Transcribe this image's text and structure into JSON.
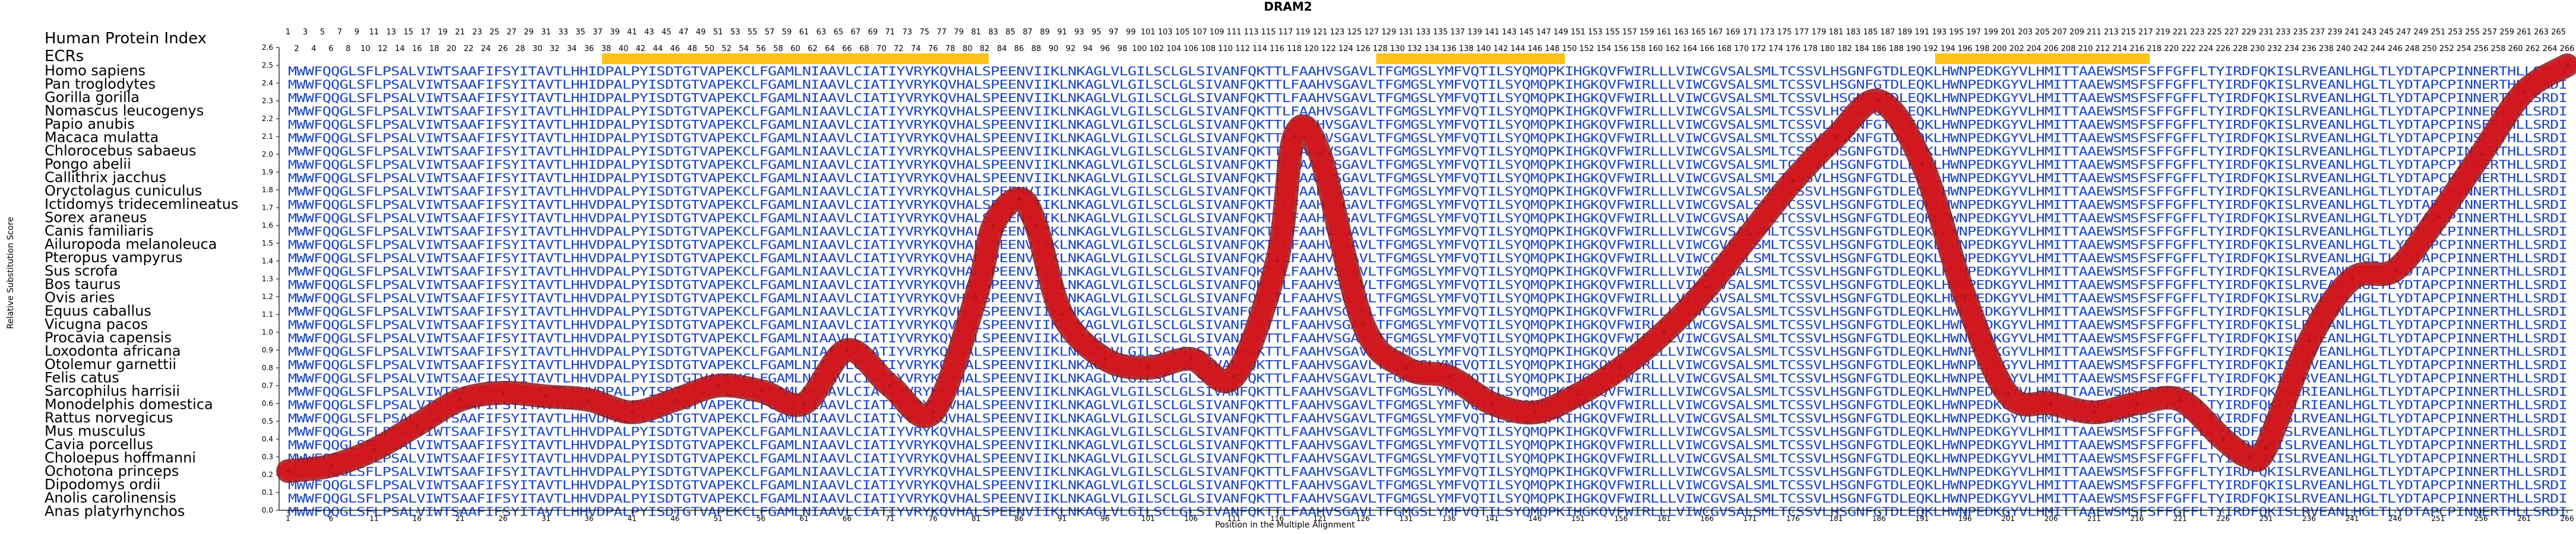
{
  "chart_data": {
    "type": "line",
    "title": "DRAM2",
    "xlabel": "Position in the Multiple Alignment",
    "ylabel": "Relative Substitution Score",
    "xlim": [
      1,
      266
    ],
    "ylim": [
      0.0,
      2.6
    ],
    "yticks": [
      0.0,
      0.1,
      0.2,
      0.3,
      0.4,
      0.5,
      0.6,
      0.7,
      0.8,
      0.9,
      1.0,
      1.1,
      1.2,
      1.3,
      1.4,
      1.5,
      1.6,
      1.7,
      1.8,
      1.9,
      2.0,
      2.1,
      2.2,
      2.3,
      2.4,
      2.5,
      2.6
    ],
    "xticks": [
      1,
      6,
      11,
      16,
      21,
      26,
      31,
      36,
      41,
      46,
      51,
      56,
      61,
      66,
      71,
      76,
      81,
      86,
      91,
      96,
      101,
      106,
      111,
      116,
      121,
      126,
      131,
      136,
      141,
      146,
      151,
      156,
      161,
      166,
      171,
      176,
      181,
      186,
      191,
      196,
      201,
      206,
      211,
      216,
      221,
      226,
      231,
      236,
      241,
      246,
      251,
      256,
      261,
      266
    ],
    "grid": false,
    "header_row_label": "Human Protein Index",
    "ecr_label": "ECRs",
    "index_top": [
      "1",
      "3",
      "5",
      "7",
      "9",
      "11",
      "13",
      "15",
      "17",
      "19",
      "21",
      "23",
      "25",
      "27",
      "29",
      "31",
      "33",
      "35",
      "37",
      "39",
      "41",
      "43",
      "45",
      "47",
      "49",
      "51",
      "53",
      "55",
      "57",
      "59",
      "61",
      "63",
      "65",
      "67",
      "69",
      "71",
      "73",
      "75",
      "77",
      "79",
      "81",
      "83",
      "85",
      "87",
      "89",
      "91",
      "93",
      "95",
      "97",
      "99",
      "101",
      "103",
      "105",
      "107",
      "109",
      "111",
      "113",
      "115",
      "117",
      "119",
      "121",
      "123",
      "125",
      "127",
      "129",
      "131",
      "133",
      "135",
      "137",
      "139",
      "141",
      "143",
      "145",
      "147",
      "149",
      "151",
      "153",
      "155",
      "157",
      "159",
      "161",
      "163",
      "165",
      "167",
      "169",
      "171",
      "173",
      "175",
      "177",
      "179",
      "181",
      "183",
      "185",
      "187",
      "189",
      "191",
      "193",
      "195",
      "197",
      "199",
      "201",
      "203",
      "205",
      "207",
      "209",
      "211",
      "213",
      "215",
      "217",
      "219",
      "221",
      "223",
      "225",
      "227",
      "229",
      "231",
      "233",
      "235",
      "237",
      "239",
      "241",
      "243",
      "245",
      "247",
      "249",
      "251",
      "253",
      "255",
      "257",
      "259",
      "261",
      "263",
      "265"
    ],
    "index_bottom": [
      "2",
      "4",
      "6",
      "8",
      "10",
      "12",
      "14",
      "16",
      "18",
      "20",
      "22",
      "24",
      "26",
      "28",
      "30",
      "32",
      "34",
      "36",
      "38",
      "40",
      "42",
      "44",
      "46",
      "48",
      "50",
      "52",
      "54",
      "56",
      "58",
      "60",
      "62",
      "64",
      "66",
      "68",
      "70",
      "72",
      "74",
      "76",
      "78",
      "80",
      "82",
      "84",
      "86",
      "88",
      "90",
      "92",
      "94",
      "96",
      "98",
      "100",
      "102",
      "104",
      "106",
      "108",
      "110",
      "112",
      "114",
      "116",
      "118",
      "120",
      "122",
      "124",
      "126",
      "128",
      "130",
      "132",
      "134",
      "136",
      "138",
      "140",
      "142",
      "144",
      "146",
      "148",
      "150",
      "152",
      "154",
      "156",
      "158",
      "160",
      "162",
      "164",
      "166",
      "168",
      "170",
      "172",
      "174",
      "176",
      "178",
      "180",
      "182",
      "184",
      "186",
      "188",
      "190",
      "192",
      "194",
      "196",
      "198",
      "200",
      "202",
      "204",
      "206",
      "208",
      "210",
      "212",
      "214",
      "216",
      "218",
      "220",
      "222",
      "224",
      "226",
      "228",
      "230",
      "232",
      "234",
      "236",
      "238",
      "240",
      "242",
      "244",
      "246",
      "248",
      "250",
      "252",
      "254",
      "256",
      "258",
      "260",
      "262",
      "264",
      "266"
    ],
    "ecr_ranges": [
      [
        38,
        82
      ],
      [
        128,
        149
      ],
      [
        193,
        217
      ]
    ],
    "colors": {
      "line": "#d9141b",
      "line_dark": "#9b1418",
      "aa_conserved": "#1a44c8",
      "aa_variable": "#4d7fa0",
      "ecr": "#ffc21a",
      "text": "#000000"
    },
    "species": [
      "Homo sapiens",
      "Pan troglodytes",
      "Gorilla gorilla",
      "Nomascus leucogenys",
      "Papio anubis",
      "Macaca mulatta",
      "Chlorocebus sabaeus",
      "Pongo abelii",
      "Callithrix jacchus",
      "Oryctolagus cuniculus",
      "Ictidomys tridecemlineatus",
      "Sorex araneus",
      "Canis familiaris",
      "Ailuropoda melanoleuca",
      "Pteropus vampyrus",
      "Sus scrofa",
      "Bos taurus",
      "Ovis aries",
      "Equus caballus",
      "Vicugna pacos",
      "Procavia capensis",
      "Loxodonta africana",
      "Otolemur garnettii",
      "Felis catus",
      "Sarcophilus harrisii",
      "Monodelphis domestica",
      "Rattus norvegicus",
      "Mus musculus",
      "Cavia porcellus",
      "Choloepus hoffmanni",
      "Ochotona princeps",
      "Dipodomys ordii",
      "Anolis carolinensis",
      "Anas platyrhynchos"
    ],
    "sequences": [
      "MWWFQQGLSFLPSALVIWTSAAFIFSYITAVTLHHIDPALPYISDTGTVAPEKCLFGAMLNIAAVLCIATIYVRYKQVHALSPEENVIIKLNKAGLVLGILSCLGLSIVANFQKTTLFAAHVSGAVLTFGMGSLYMFVQTILSYQMQPKIHGKQVFWIRLLLVIWCGVSALSMLTCSSVLHSGNFGTDLEQKLHWNPEDKGYVLHMITTAAEWSMSFSFFGFFLTYIRDFQKISLRVEANLHGLTLYDTAPCPINNERTHLLSRDI",
      "MWWFQQGLSFLPSALVIWTSAAFIFSYITAVTLHHIDPALPYISDTGTVAPEKCLFGAMLNIAAVLCIATIYVRYKQVHALSPEENVIIKLNKAGLVLGILSCLGLSIVANFQKTTLFAAHVSGAVLTFGMGSLYMFVQTILSYQMQPKIHGKQVFWIRLLLVIWCGVSALSMLTCSSVLHSGNFGTDLEQKLHWNPEDKGYVLHMITTAAEWSMSFSFFGFFLTYIRDFQKISLRVEANLHGLTLYDTAPCPINNERTHLLSRDI",
      "MWWFQQGLSFLPSALVIWTSAAFIFSYITAVTLHHIDPALPYISDTGTVAPEKCLFGAMLNIAAVLCIATIYVRYKQVHALSPEENVIIKLNKAGLVLGILSCLGLSIVANFQKTTLFAAHVSGAVLTFGMGSLYMFVQTILSYQMQPKIHGKQVFWIRLLLVIWCGVSALSMLTCSSVLHSGNFGTDLEQKLHWNPEDKGYVLHMITTAAEWSMSFSFFGFFLTYIRDFQKISLRVEANLHGLTLYDTAPCPINNERTHLLSRDI",
      "MWWFQQGLSFLPSALVIWTSAAFIFSYITAVTLHHIDPALPYISDTGTVAPEKCLFGAMLNIAAVLCIATIYVRYKQVHALSPEENVIIKLNKAGLVLGILSCLGLSIVANFQKTTLFAAHVSGAVLTFGMGSLYMFVQTILSYQMQPKIHGKQVFWIRLLLVIWCGVSALSMLTCSSVLHSGNFGTDLEQKLHWNPEDKGYVLHMITTAAEWSMSFSFFGFFLTYIRDFQKISLRVEANLHGLTLYDTAPCPINNERTHLLSRDI",
      "MWWFQQGLSFLPSALVIWTSAAFIFSYITAVTLHHIDPALPYISDTGTVAPEKCLFGAMLNIAAVLCIATIYVRYKQVHALSPEENVIIKLNKAGLVLGILSCLGLSIVANFQKTTLFAAHVSGAVLTFGMGSLYMFVQTILSYQMQPKIHGKQVFWIRLLLVIWCGVSALSMLTCSSVLHSGNFGTDLEQKLHWNPEDKGYVLHMITTAAEWSMSFSFFGFFLTYIRDFQKISLRVEANLHGLTLYDTAPCPINSERTHLLSRDI",
      "MWWFQQGLSFLPSALVIWTSAAFIFSYITAVTLHHIDPALPYISDTGTVAPEKCLFGAMLNIAAVLCIATIYVRYKQVHALSPEENVIIKLNKAGLVLGILSCLGLSIVANFQKTTLFAAHVSGAVLTFGMGSLYMFVQTILSYQMQPKIHGKQVFWIRLLLVIWCGVSALSMLTCSSVLHSGNFGTDLEQKLHWNPEDKGYVLHMITTAAEWSMSFSFFGFFLTYIRDFQKISLRVEANLHGLTLYDTAPCPINSERTHLLSRDI",
      "MWWFQQGLSFLPSALVIWTSAAFIFSYITAVTLHHIDPALPYISDTGTVAPEKCLFGAMLNIAAVLCIATIYVRYKQVHALSPEENVIIKLNKAGLVLGILSCLGLSIVANFQKTTLFAAHVSGAVLTFGMGSLYMFVQTILSYQMQPKIHGKQVFWIRLLLVIWCGVSALSMLTCSSVLHSGNFGTDLEQKLHWNPEDKGYVLHMITTAAEWSMSFSFFGFFLTYIRDFQKISLRVEANLHGLTLYDTAPCPINSERTHLLSRDI",
      "MWWFQQGLSFLPSALVIWTSAAFIFSYITAVTLHHIDPALPYISDTGTVAPEKCLFGAMLNIAAVLCIATIYVRYKQVHALSPEENVIIKLNKAGLVLGILSCLGLSIVANFQKTTLFAAHVSGAVLTFGMGSLYMFVQTILSYQMQPKIHGKQVFWIRLLLVIWCGVSALSMLTCSSVLHSGNFGTDLEQKLHWNPEDKGYVLHMITTAAEWSMSFSFFGFFLTYIRDFQKISLRVEANLHGLTLYDTAPCPINNERTHLLSRDI",
      "MWWFQQGLSFLPSALVIWTSAAFIFSYITAVTLHHIDPALPYISDTGTVAPEKCLFGAMLNIAAVLCIATIYVRYKQVHALSPEENVIIKLNKAGLVLGILSCLGLSIVANFQKTTLFAAHVSGAVLTFGMGSLYMFVQTILSYQMQPKIHGKQVFWIRLLLVIWCGVSALSMLTCSSVLHSGNFGTDLEQKLHWNPEDKGYVLHMITTAAEWSMSFSFFGFFLTYIRDFQKISLRVEANLHGLTLYDTAPCPINNERTHLLSRDI",
      "MWWFQQGLSFLPSALVIWTSAAFIFSYITAVTLHHVDPALPYISDTGTVAPEKCLFGAMLNIAAVLCIATIYVRYKQVHALSPEENVIIKLNKAGLVLGILSCLGLSIVANFQKTTLFAAHVSGAVLTFGMGSLYMFVQTILSYQMQPKIHGKQVFWIRLLLVIWCGVSALSMLTCSSVLHSGNFGTDLEQKLHWNPEDKGYVLHMITTAAEWSMSFSFFGFFLTYIRDFQKISLRVEANLHGLTLYDTAPCPINNERTHLLSRDI",
      "MWWFQQGLSFLPSALVIWTSAAFIFSYITAVTLHHVDPALPYISDTGTVAPEKCLFGAMLNIAAVLCIATIYVRYKQVHALSPEENVIIKLNKAGLVLGILSCLGLSIVANFQKTTLFAAHVSGAVLTFGMGSLYMFVQTILSYQMQPKIHGKQVFWIRLLLVIWCGVSALSMLTCSSVLHSGNFGTDLEQKLHWNPEDKGYVLHMITTAAEWSMSFSFFGFFLTYIRDFQKISLRVEANLHGLTLYDTAPCPINNERTHLLSRDI",
      "MWWFQQGLSFLPSALVIWTSAAFIFSYITAVTLHHVDPALPYISDTGTVAPEKCLFGAMLNIAAVLCIATIYVRYKQVHALSPEENVIIKLNKAGLVLGILSCLGLSIVANFQKTTLFAAHVSGAVLTFGMGSLYMFVQTILSYQMQPKIHGKQVFWIRLLLVIWCGVSALSMLTCSSVLHSGNFGTDLEQKLHWNPEDKGYVLHMITTAAEWSMSFSFFGFFLTYIRDFQKISLRVEANLHGLTLYDTAPCPINNERTHLLSRDI",
      "MWWFQQGLSFLPSALVIWTSAAFIFSYITAVTLHHVDPALPYISDTGTVAPEKCLFGAMLNIAAVLCIATIYVRYKQVHALSPEENVIIKLNKAGLVLGILSCLGLSIVANFQKTTLFAAHVSGAVLTFGMGSLYMFVQTILSYQMQPKIHGKQVFWIRLLLVIWCGVSALSMLTCSSVLHSGNFGTDLEQKLHWNPEDKGYVLHMITTAAEWSMSFSFFGFFLTYIRDFQKISLRVEANLHGLTLYDTAPCPINNERTHLLSRDI",
      "MWWFQQGLSFLPSALVIWTSAAFIFSYITAVTLHHVDPALPYISDTGTVAPEKCLFGAMLNIAAVLCIATIYVRYKQVHALSPEENVIIKLNKAGLVLGILSCLGLSIVANFQKTTLFAAHVSGAVLTFGMGSLYMFVQTILSYQMQPKIHGKQVFWIRLLLVIWCGVSALSMLTCSSVLHSGNFGTDLEQKLHWNPEDKGYVLHMITTAAEWSMSFSFFGFFLTYIRDFQKISLRVEANLHGLTLYDTAPCPINNERTHLLSRDI",
      "MWWFQQGLSFLPSALVIWTSAAFIFSYITAVTLHHVDPALPYISDTGTVAPEKCLFGAMLNIAAVLCIATIYVRYKQVHALSPEENVIIKLNKAGLVLGILSCLGLSIVANFQKTTLFAAHVSGAVLTFGMGSLYMFVQTILSYQMQPKIHGKQVFWIRLLLVIWCGVSALSMLTCSSVLHSGNFGTDLEQKLHWNPEDKGYVLHMITTAAEWSMSFSFFGFFLTYIRDFQKISLRVEANLHGLTLYDTAPCPINNERTHLLSRDI",
      "MWWFQQGLSFLPSALVIWTSAAFIFSYITAVTLHHVDPALPYISDTGTVAPEKCLFGAMLNIAAVLCIATIYVRYKQVHALSPEENVIIKLNKAGLVLGILSCLGLSIVANFQKTTLFAAHVSGAVLTFGMGSLYMFVQTILSYQMQPKIHGKQVFWIRLLLVIWCGVSALSMLTCSSVLHSGNFGTDLEQKLHWNPEDKGYVLHMITTAAEWSMSFSFFGFFLTYIRDFQKISLRVEANLHGLTLYDTAPCPINNERTHLLSRDI",
      "MWWFQQGLSFLPSALVIWTSAAFIFSYITAVTLHHVDPALPYISDTGTVAPEKCLFGAMLNIAAVLCIATIYVRYKQVHALSPEENVIIKLNKAGLVLGILSCLGLSIVANFQKTTLFAAHVSGAVLTFGMGSLYMFVQTILSYQMQPKIHGKQVFWIRLLLVIWCGVSALSMLTCSSVLHSGNFGTDLEQKLHWNPEDKGYVLHMITTAAEWSMSFSFFGFFLTYIRDFQKISLRVEANLHGLTLYDTAPCPINNERTHLLSRDI",
      "MWWFQQGLSFLPSALVIWTSAAFIFSYITAVTLHHVDPALPYISDTGTVAPEKCLFGAMLNIAAVLCIATIYVRYKQVHALSPEENVIIKLNKAGLVLGILSCLGLSIVANFQKTTLFAAHVSGAVLTFGMGSLYMFVQTILSYQMQPKIHGKQVFWIRLLLVIWCGVSALSMLTCSSVLHSGNFGTDLEQKLHWNPEDKGYVLHMITTAAEWSMSFSFFGFFLTYIRDFQKISLRVEANLHGLTLYDTAPCPINNERTHLLSRDI",
      "MWWFQQGLSFLPSALVIWTSAAFIFSYITAVTLHHVDPALPYISDTGTVAPEKCLFGAMLNIAAVLCIATIYVRYKQVHALSPEENVIIKLNKAGLVLGILSCLGLSIVANFQKTTLFAAHVSGAVLTFGMGSLYMFVQTILSYQMQPKIHGKQVFWIRLLLVIWCGVSALSMLTCSSVLHSGNFGTDLEQKLHWNPEDKGYVLHMITTAAEWSMSFSFFGFFLTYIRDFQKISLRVEANLHGLTLYDTAPCPINNERTHLLSRDI",
      "MWWFQQGLSFLPSALVIWTSAAFIFSYITAVTLHHVDPALPYISDTGTVAPEKCLFGAMLNIAAVLCIATIYVRYKQVHALSPEENVIIKLNKAGLVLGILSCLGLSIVANFQKTTLFAAHVSGAVLTFGMGSLYMFVQTILSYQMQPKIHGKQVFWIRLLLVIWCGVSALSMLTCSSVLHSGNFGTDLEQKLHWNPEDKGYVLHMITTAAEWSMSFSFFGFFLTYIRDFQKISLRVEANLHGLTLYDTAPCPINNERTHLLSRDI",
      "MWWFQQGLSFLPSALVIWTSAAFIFSYITAVTLHHVDPALPYISDTGTVAPEKCLFGAMLNIAAVLCIATIYVRYKQVHALSPEENVIIKLNKAGLVLGILSCLGLSIVANFQKTTLFAAHVSGAVLTFGMGSLYMFVQTILSYQMQPKIHGKQVFWIRLLLVIWCGVSALSMLTCSSVLHSGNFGTDLEQKLHWNPEDKGYVLHMITTAAEWSMSFSFFGFFLTYIRDFQKISLRVEANLHGLTLYDTAPCPINNERTHLLSRDI",
      "MWWFQQGLSFLPSALVIWTSAAFIFSYITAVTLHHVDPALPYISDTGTVAPEKCLFGAMLNIAAVLCIATIYVRYKQVHALSPEENVIIKLNKAGLVLGILSCLGLSIVANFQKTTLFAAHVSGAVLTFGMGSLYMFVQTILSYQMQPKIHGKQVFWIRLLLVIWCGVSALSMLTCSSVLHSGNFGTDLEQKLHWNPEDKGYVLHMITTAAEWSMSFSFFGFFLTYIRDFQKISLRVEANLHGLTLYDTAPCPINNERTHLLSRDI",
      "MWWFQQGLSFLPSALVIWTSAAFIFSYITAVTLHHVDPALPYISDTGTVAPEKCLFGAMLNIAAVLCIATIYVRYKQVHALSPEENVIIKLNKAGLVLGILSCLGLSIVANFQKTTLFAAHVSGAVLTFGMGSLYMFVQTILSYQMQPKIHGKQVFWIRLLLVIWCGVSALSMLTCSSVLHSGNFGTDLEQKLHWNPEDKGYVLHMITTAAEWSMSFSFFGFFLTYIRDFQKISLRVEANLHGLTLYDTAPCPINNERTHLLSRDI",
      "MWWFQQGLSFLPSALVIWTSAAFIFSYITAVTLHHVDPALPYISDTGTVAPEKCLFGAMLNIAAVLCIATIYVRYKQVHALSPEENVIIKLNKAGLVLGILSCLGLSIVANFQKTTLFAAHVSGAVLTFGMGSLYMFVQTILSYQMQPKIHGKQVFWIRLLLVIWCGVSALSMLTCSSVLHSGNFGTDLEQKLHWNPEDKGYVLHMITTAAEWSMSFSFFGFFLTYIRDFQKISLRVEANLHGLTLYDTAPCPINNERTHLLSRDI",
      "MWWFQQGLSFLPSALVIWTSAAFIFSYITAVTLHHVDPALPYISDTGTVAPEKCLFGAMLNIAAVLCIATIYVRYKQVHALSPEENVIIKLNKAGLVLGILSCLGLSIVANFQKTTLFAAHVSGAVLTFGMGSLYMFVQTILSYQMQPKIHGKQVFWIRLLLVIWCGVSALSMLTCSSVLHSGNFGTDLEQKLHWNPEDKGYVLHMITTAAEWSMSFSFFGFFLTYIRDFQKISLRIEANLHGLTLYDTAPCPINNERTHLLSRDI",
      "MWWFQQGLSFLPSALVIWTSAAFIFSYITAVTLHHVDPALPYISDTGTVAPEKCLFGAMLNIAAVLCIATIYVRYKQVHALSPEENVIIKLNKAGLVLGILSCLGLSIVANFQKTTLFAAHVSGAVLTFGMGSLYMFVQTILSYQMQPKIHGKQVFWIRLLLVIWCGVSALSMLTCSSVLHSGNFGTDLEQKLHWNPEDKGYVLHMITTAAEWSMSFSFFGFFLTYIRDFQKISLRIEANLHGLTLYDTAPCPINNERTHLLSRDI",
      "MWWFQQGLSFLPSALVIWTSAAFIFSYITAVTLHHVDPALPYISDTGTVAPEKCLFGAMLNIAAVLCIATIYVRYKQVHALSPEENVIIKLNKAGLVLGILSCLGLSIVANFQKTTLFAAHVSGAVLTFGMGSLYMFVQTILSYQMQPKIHGKQVFWIRLLLVIWCGVSALSMLTCSSVLHSGNFGTDLEQKLHWNPEDKGYVLHMITTAAEWSMSFSFFGFFLTYIRDFQKISLRVEANLHGLTLYDTAPCPINNERTHLLSRDI",
      "MWWFQQGLSFLPSALVIWTSAAFIFSYITAVTLHHVDPALPYISDTGTVAPEKCLFGAMLNIAAVLCIATIYVRYKQVHALSPEENVIIKLNKAGLVLGILSCLGLSIVANFQKTTLFAAHVSGAVLTFGMGSLYMFVQTILSYQMQPKIHGKQVFWIRLLLVIWCGVSALSMLTCSSVLHSGNFGTDLEQKLHWNPEDKGYVLHMITTAAEWSMSFSFFGFFLTYIRDFQKISLRVEANLHGLTLYDTAPCPINNERTHLLSRDI",
      "MWWFQQGLSFLPSALVIWTSAAFIFSYITAVTLHHVDPALPYISDTGTVAPEKCLFGAMLNIAAVLCIATIYVRYKQVHALSPEENVIIKLNKAGLVLGILSCLGLSIVANFQKTTLFAAHVSGAVLTFGMGSLYMFVQTILSYQMQPKIHGKQVFWIRLLLVIWCGVSALSMLTCSSVLHSGNFGTDLEQKLHWNPEDKGYVLHMITTAAEWSMSFSFFGFFLTYIRDFQKISLRVEANLHGLTLYDTAPCPINNERTHLLSRDI",
      "MWWFQQGLSFLPSALVIWTSAAFIFSYITAVTLHHVDPALPYISDTGTVAPEKCLFGAMLNIAAVLCIATIYVRYKQVHALSPEENVIIKLNKAGLVLGILSCLGLSIVANFQKTTLFAAHVSGAVLTFGMGSLYMFVQTILSYQMQPKIHGKQVFWIRLLLVIWCGVSALSMLTCSSVLHSGNFGTDLEQKLHWNPEDKGYVLHMITTAAEWSMSFSFFGFFLTYIRDFQKISLRVEANLHGLTLYDTAPCPINNERTHLLSRDI",
      "MWWFQQGLSFLPSALVIWTSAAFIFSYITAVTLHHVDPALPYISDTGTVAPEKCLFGAMLNIAAVLCIATIYVRYKQVHALSPEENVIIKLNKAGLVLGILSCLGLSIVANFQKTTLFAAHVSGAVLTFGMGSLYMFVQTILSYQMQPKIHGKQVFWIRLLLVIWCGVSALSMLTCSSVLHSGNFGTDLEQKLHWNPEDKGYVLHMITTAAEWSMSFSFFGFFLTYIRDFQKISLRVEANLHGLTLYDTAPCPINNERTHLLSRDI",
      "MWWFQQGLSFLPSALVIWTSAAFIFSYITAVTLHHVDPALPYISDTGTVAPEKCLFGAMLNIAAVLCIATIYVRYKQVHALSPEENVIIKLNKAGLVLGILSCLGLSIVANFQKTTLFAAHVSGAVLTFGMGSLYMFVQTILSYQMQPKIHGKQVFWIRLLLVIWCGVSALSMLTCSSVLHSGNFGTDLEQKLHWNPEDKGYVLHMITTAAEWSMSFSFFGFFLTYIRDFQKISLRVEANLHGLTLYDTAPCPINNERTHLLSRDI",
      "MWWFQQGLSFLPSALVIWTSAAFIFSYITAVTLHHVDPALPYISDTGTVAPEKCLFGAMLNIAAVLCIATIYVRYKQVHALSPEENVIIKLNKAGLVLGILSCLGLSIVANFQKTTLFAAHVSGAVLTFGMGSLYMFVQTILSYQMQPKIHGKQVFWIRLLLVIWCGVSALSMLTCSSVLHSGNFGTDLEQKLHWNPEDKGYVLHMITTAAEWSMSFSFFGFFLTYIRDFQKISLRVEANLHGLTLYDTAPCPINNERTHLLSRDI",
      "MWWFQQGLSFLPSALVIWTSAAFIFSYITAVTLHHVDPALPYISDTGTVAPEKCLFGAMLNIAAVLCIATIYVRYKQVHALSPEENVIIKLNKAGLVLGILSCLGLSIVANFQKTTLFAAHVSGAVLTFGMGSLYMFVQTILSYQMQPKIHGKQVFWIRLLLVIWCGVSALSMLTCSSVLHSGNFGTDLEQKLHWNPEDKGYVLHMITTAAEWSMSFSFFGFFLTYIRDFQKISLRVEANLHGLTLYDTAPCPINNERTHLLSRDI"
    ],
    "series": [
      {
        "x": [
          1,
          6,
          11,
          16,
          21,
          26,
          31,
          36,
          41,
          46,
          51,
          56,
          61,
          66,
          71,
          76,
          81,
          83,
          86,
          88,
          91,
          96,
          101,
          106,
          111,
          116,
          118,
          121,
          126,
          131,
          136,
          141,
          146,
          151,
          156,
          161,
          166,
          171,
          176,
          181,
          186,
          191,
          196,
          201,
          206,
          211,
          216,
          221,
          226,
          229,
          231,
          236,
          241,
          246,
          251,
          256,
          261,
          266
        ],
        "y": [
          0.22,
          0.25,
          0.34,
          0.48,
          0.62,
          0.66,
          0.64,
          0.62,
          0.55,
          0.62,
          0.7,
          0.67,
          0.6,
          0.9,
          0.7,
          0.55,
          1.2,
          1.6,
          1.75,
          1.6,
          1.1,
          0.85,
          0.8,
          0.85,
          0.75,
          1.4,
          2.1,
          2.0,
          1.05,
          0.8,
          0.75,
          0.6,
          0.55,
          0.65,
          0.8,
          1.0,
          1.25,
          1.55,
          1.85,
          2.1,
          2.3,
          1.95,
          1.2,
          0.65,
          0.6,
          0.55,
          0.6,
          0.62,
          0.4,
          0.3,
          0.35,
          0.95,
          1.3,
          1.35,
          1.65,
          2.0,
          2.35,
          2.5
        ]
      }
    ]
  }
}
